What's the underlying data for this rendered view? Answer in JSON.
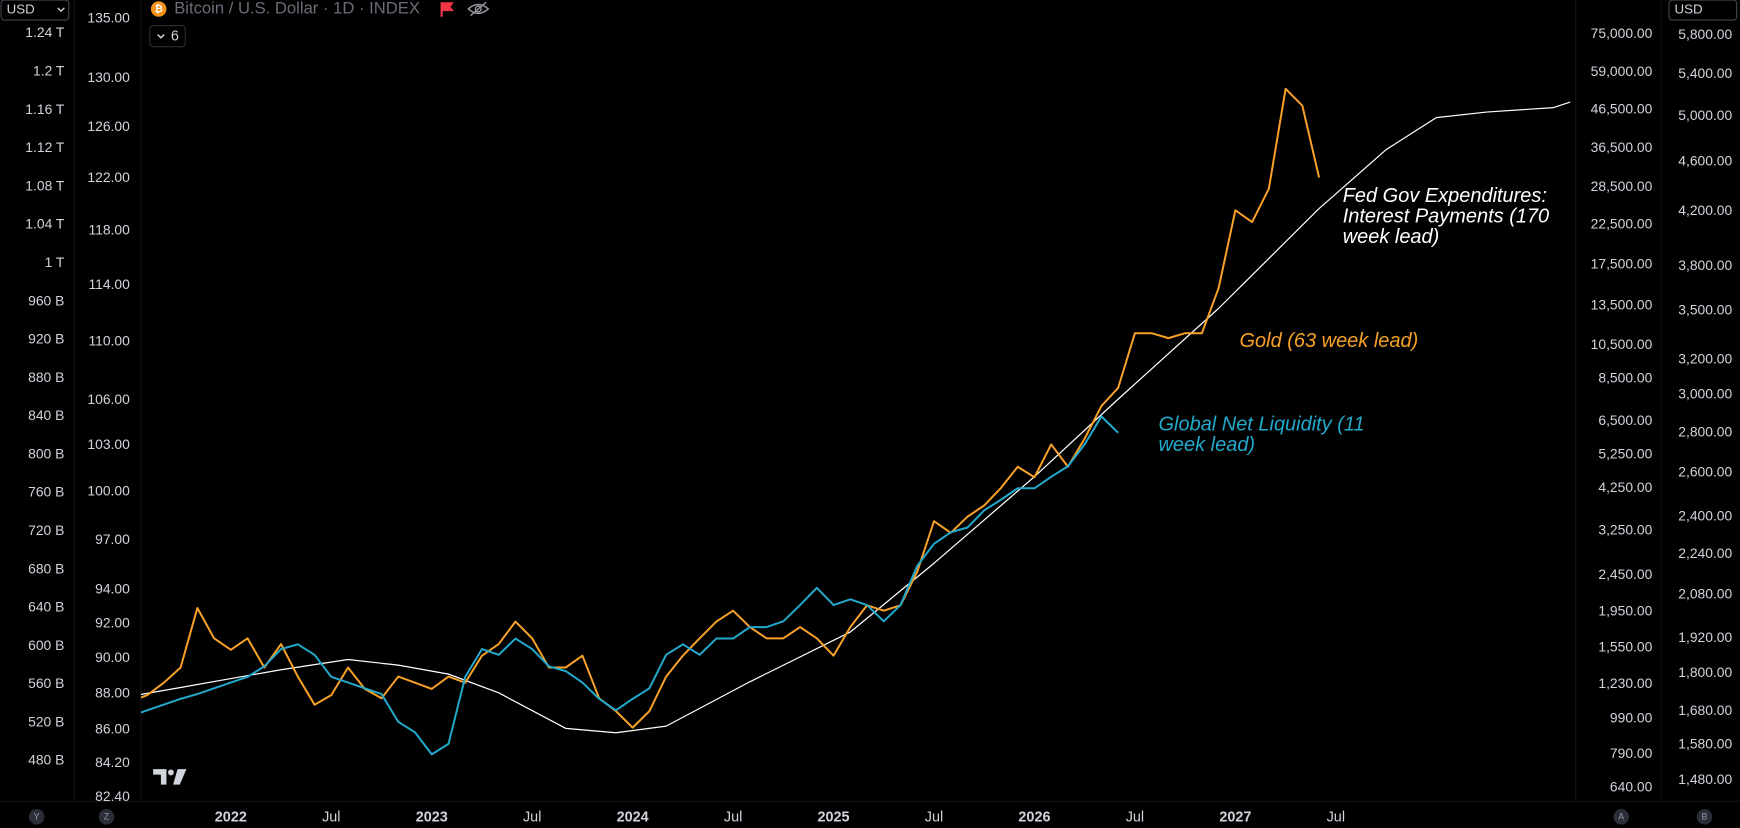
{
  "ui": {
    "currency_left": "USD",
    "currency_right": "USD",
    "indicator_count": "6",
    "buttons": [
      "Y",
      "Z",
      "A",
      "B"
    ]
  },
  "chart_data": {
    "type": "line",
    "title": "Bitcoin / U.S. Dollar · 1D · INDEX",
    "xlim": [
      "2021-07",
      "2028-09"
    ],
    "xticks": [
      {
        "value": "2022-01",
        "label": "2022"
      },
      {
        "value": "2022-07",
        "label": "Jul"
      },
      {
        "value": "2023-01",
        "label": "2023"
      },
      {
        "value": "2023-07",
        "label": "Jul"
      },
      {
        "value": "2024-01",
        "label": "2024"
      },
      {
        "value": "2024-07",
        "label": "Jul"
      },
      {
        "value": "2025-01",
        "label": "2025"
      },
      {
        "value": "2025-07",
        "label": "Jul"
      },
      {
        "value": "2026-01",
        "label": "2026"
      },
      {
        "value": "2026-07",
        "label": "Jul"
      },
      {
        "value": "2027-01",
        "label": "2027"
      },
      {
        "value": "2027-07",
        "label": "Jul"
      }
    ],
    "grid": false,
    "y_axes": [
      {
        "side": "left",
        "scale": "linear",
        "lim": [
          438000000000,
          1275000000000
        ],
        "ticks": [
          {
            "value": 1240000000000,
            "label": "1.24 T"
          },
          {
            "value": 1200000000000,
            "label": "1.2 T"
          },
          {
            "value": 1160000000000,
            "label": "1.16 T"
          },
          {
            "value": 1120000000000,
            "label": "1.12 T"
          },
          {
            "value": 1080000000000,
            "label": "1.08 T"
          },
          {
            "value": 1040000000000,
            "label": "1.04 T"
          },
          {
            "value": 1000000000000,
            "label": "1 T"
          },
          {
            "value": 960000000000,
            "label": "960 B"
          },
          {
            "value": 920000000000,
            "label": "920 B"
          },
          {
            "value": 880000000000,
            "label": "880 B"
          },
          {
            "value": 840000000000,
            "label": "840 B"
          },
          {
            "value": 800000000000,
            "label": "800 B"
          },
          {
            "value": 760000000000,
            "label": "760 B"
          },
          {
            "value": 720000000000,
            "label": "720 B"
          },
          {
            "value": 680000000000,
            "label": "680 B"
          },
          {
            "value": 640000000000,
            "label": "640 B"
          },
          {
            "value": 600000000000,
            "label": "600 B"
          },
          {
            "value": 560000000000,
            "label": "560 B"
          },
          {
            "value": 520000000000,
            "label": "520 B"
          },
          {
            "value": 480000000000,
            "label": "480 B"
          }
        ]
      },
      {
        "side": "left",
        "scale": "log",
        "lim": [
          82.2,
          136.6
        ],
        "ticks": [
          {
            "value": 135,
            "label": "135.00"
          },
          {
            "value": 130,
            "label": "130.00"
          },
          {
            "value": 126,
            "label": "126.00"
          },
          {
            "value": 122,
            "label": "122.00"
          },
          {
            "value": 118,
            "label": "118.00"
          },
          {
            "value": 114,
            "label": "114.00"
          },
          {
            "value": 110,
            "label": "110.00"
          },
          {
            "value": 106,
            "label": "106.00"
          },
          {
            "value": 103,
            "label": "103.00"
          },
          {
            "value": 100,
            "label": "100.00"
          },
          {
            "value": 97,
            "label": "97.00"
          },
          {
            "value": 94,
            "label": "94.00"
          },
          {
            "value": 92,
            "label": "92.00"
          },
          {
            "value": 90,
            "label": "90.00"
          },
          {
            "value": 88,
            "label": "88.00"
          },
          {
            "value": 86,
            "label": "86.00"
          },
          {
            "value": 84.2,
            "label": "84.20"
          },
          {
            "value": 82.4,
            "label": "82.40"
          }
        ]
      },
      {
        "side": "right",
        "scale": "log",
        "lim": [
          588,
          93200
        ],
        "ticks": [
          {
            "value": 75000,
            "label": "75,000.00"
          },
          {
            "value": 59000,
            "label": "59,000.00"
          },
          {
            "value": 46500,
            "label": "46,500.00"
          },
          {
            "value": 36500,
            "label": "36,500.00"
          },
          {
            "value": 28500,
            "label": "28,500.00"
          },
          {
            "value": 22500,
            "label": "22,500.00"
          },
          {
            "value": 17500,
            "label": "17,500.00"
          },
          {
            "value": 13500,
            "label": "13,500.00"
          },
          {
            "value": 10500,
            "label": "10,500.00"
          },
          {
            "value": 8500,
            "label": "8,500.00"
          },
          {
            "value": 6500,
            "label": "6,500.00"
          },
          {
            "value": 5250,
            "label": "5,250.00"
          },
          {
            "value": 4250,
            "label": "4,250.00"
          },
          {
            "value": 3250,
            "label": "3,250.00"
          },
          {
            "value": 2450,
            "label": "2,450.00"
          },
          {
            "value": 1950,
            "label": "1,950.00"
          },
          {
            "value": 1550,
            "label": "1,550.00"
          },
          {
            "value": 1230,
            "label": "1,230.00"
          },
          {
            "value": 990,
            "label": "990.00"
          },
          {
            "value": 790,
            "label": "790.00"
          },
          {
            "value": 640,
            "label": "640.00"
          }
        ]
      },
      {
        "side": "right",
        "scale": "log",
        "lim": [
          1424,
          6190
        ],
        "ticks": [
          {
            "value": 5800,
            "label": "5,800.00"
          },
          {
            "value": 5400,
            "label": "5,400.00"
          },
          {
            "value": 5000,
            "label": "5,000.00"
          },
          {
            "value": 4600,
            "label": "4,600.00"
          },
          {
            "value": 4200,
            "label": "4,200.00"
          },
          {
            "value": 3800,
            "label": "3,800.00"
          },
          {
            "value": 3500,
            "label": "3,500.00"
          },
          {
            "value": 3200,
            "label": "3,200.00"
          },
          {
            "value": 3000,
            "label": "3,000.00"
          },
          {
            "value": 2800,
            "label": "2,800.00"
          },
          {
            "value": 2600,
            "label": "2,600.00"
          },
          {
            "value": 2400,
            "label": "2,400.00"
          },
          {
            "value": 2240,
            "label": "2,240.00"
          },
          {
            "value": 2080,
            "label": "2,080.00"
          },
          {
            "value": 1920,
            "label": "1,920.00"
          },
          {
            "value": 1800,
            "label": "1,800.00"
          },
          {
            "value": 1680,
            "label": "1,680.00"
          },
          {
            "value": 1580,
            "label": "1,580.00"
          },
          {
            "value": 1480,
            "label": "1,480.00"
          }
        ]
      }
    ],
    "series": [
      {
        "name": [
          "Fed Gov Expenditures:",
          "Interest Payments (170",
          "week lead)"
        ],
        "color": "#ffffff",
        "axis": 1,
        "x": [
          "2021-07",
          "2021-10",
          "2022-01",
          "2022-04",
          "2022-08",
          "2022-11",
          "2023-02",
          "2023-05",
          "2023-09",
          "2023-12",
          "2024-03",
          "2024-08",
          "2025-02",
          "2025-07",
          "2026-01",
          "2026-06",
          "2026-12",
          "2027-06",
          "2027-10",
          "2028-01",
          "2028-04",
          "2028-08",
          "2028-09"
        ],
        "values": [
          87.86,
          88.35,
          88.85,
          89.35,
          89.93,
          89.61,
          89.1,
          88.05,
          86.09,
          85.85,
          86.21,
          88.67,
          91.51,
          95.59,
          100.98,
          106.07,
          112.35,
          119.69,
          124.24,
          126.79,
          127.24,
          127.6,
          128.05
        ]
      },
      {
        "name": [
          "Gold (63 week lead)"
        ],
        "color": "#f7a128",
        "axis": 3,
        "x": [
          "2021-07",
          "2021-08",
          "2021-09",
          "2021-10",
          "2021-11",
          "2021-12",
          "2022-01",
          "2022-02",
          "2022-03",
          "2022-04",
          "2022-05",
          "2022-06",
          "2022-07",
          "2022-08",
          "2022-09",
          "2022-10",
          "2022-11",
          "2022-12",
          "2023-01",
          "2023-02",
          "2023-03",
          "2023-04",
          "2023-05",
          "2023-06",
          "2023-07",
          "2023-08",
          "2023-09",
          "2023-10",
          "2023-11",
          "2023-12",
          "2024-01",
          "2024-02",
          "2024-03",
          "2024-04",
          "2024-05",
          "2024-06",
          "2024-07",
          "2024-08",
          "2024-09",
          "2024-10",
          "2024-11",
          "2024-12",
          "2025-01",
          "2025-02",
          "2025-03",
          "2025-04",
          "2025-05",
          "2025-06",
          "2025-07",
          "2025-08",
          "2025-09",
          "2025-10",
          "2025-11",
          "2025-12",
          "2026-01",
          "2026-02",
          "2026-03",
          "2026-04",
          "2026-05",
          "2026-06",
          "2026-07",
          "2026-08",
          "2026-09",
          "2026-10",
          "2026-11",
          "2026-12",
          "2027-01",
          "2027-02",
          "2027-03",
          "2027-04",
          "2027-05",
          "2027-06"
        ],
        "values": [
          1710,
          1730,
          1770,
          1820,
          2030,
          1920,
          1880,
          1920,
          1820,
          1900,
          1790,
          1700,
          1730,
          1820,
          1750,
          1720,
          1790,
          1770,
          1750,
          1790,
          1770,
          1860,
          1900,
          1980,
          1920,
          1820,
          1820,
          1860,
          1720,
          1680,
          1630,
          1680,
          1790,
          1860,
          1920,
          1980,
          2020,
          1960,
          1920,
          1920,
          1960,
          1920,
          1860,
          1960,
          2040,
          2020,
          2040,
          2170,
          2380,
          2330,
          2400,
          2450,
          2530,
          2630,
          2580,
          2740,
          2630,
          2770,
          2940,
          3040,
          3360,
          3360,
          3330,
          3360,
          3360,
          3650,
          4210,
          4120,
          4380,
          5260,
          5100,
          4470
        ]
      },
      {
        "name": [
          "Global Net Liquidity (11",
          "week lead)"
        ],
        "color": "#22a9cc",
        "axis": 0,
        "x": [
          "2021-07",
          "2021-08",
          "2021-09",
          "2021-10",
          "2021-11",
          "2021-12",
          "2022-01",
          "2022-02",
          "2022-03",
          "2022-04",
          "2022-05",
          "2022-06",
          "2022-07",
          "2022-08",
          "2022-09",
          "2022-10",
          "2022-11",
          "2022-12",
          "2023-01",
          "2023-02",
          "2023-03",
          "2023-04",
          "2023-05",
          "2023-06",
          "2023-07",
          "2023-08",
          "2023-09",
          "2023-10",
          "2023-11",
          "2023-12",
          "2024-01",
          "2024-02",
          "2024-03",
          "2024-04",
          "2024-05",
          "2024-06",
          "2024-07",
          "2024-08",
          "2024-09",
          "2024-10",
          "2024-11",
          "2024-12",
          "2025-01",
          "2025-02",
          "2025-03",
          "2025-04",
          "2025-05",
          "2025-06",
          "2025-07",
          "2025-08",
          "2025-09",
          "2025-10",
          "2025-11",
          "2025-12",
          "2026-01",
          "2026-02",
          "2026-03",
          "2026-04",
          "2026-05",
          "2026-06"
        ],
        "values": [
          527000000000,
          533000000000,
          539000000000,
          545000000000,
          550000000000,
          556000000000,
          562000000000,
          568000000000,
          579000000000,
          597000000000,
          602000000000,
          591000000000,
          568000000000,
          562000000000,
          556000000000,
          550000000000,
          521000000000,
          510000000000,
          487000000000,
          498000000000,
          568000000000,
          597000000000,
          591000000000,
          608000000000,
          597000000000,
          579000000000,
          574000000000,
          562000000000,
          545000000000,
          533000000000,
          545000000000,
          556000000000,
          591000000000,
          602000000000,
          591000000000,
          608000000000,
          608000000000,
          620000000000,
          620000000000,
          626000000000,
          643000000000,
          661000000000,
          643000000000,
          649000000000,
          643000000000,
          626000000000,
          643000000000,
          684000000000,
          707000000000,
          719000000000,
          724000000000,
          742000000000,
          753000000000,
          765000000000,
          765000000000,
          777000000000,
          788000000000,
          811000000000,
          840000000000,
          823000000000
        ]
      }
    ]
  }
}
